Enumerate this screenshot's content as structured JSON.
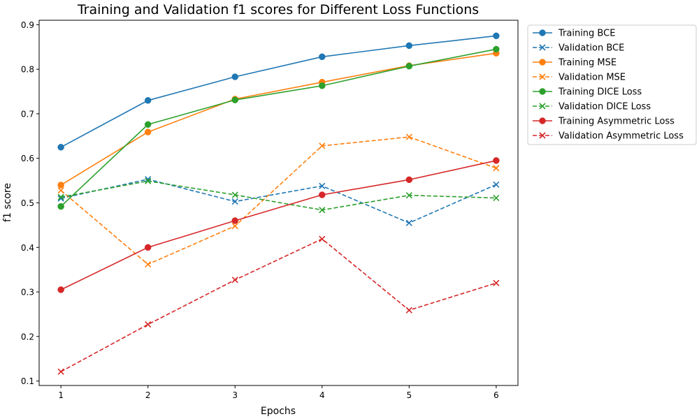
{
  "chart_data": {
    "type": "line",
    "title": "Training and Validation f1 scores for Different Loss Functions",
    "xlabel": "Epochs",
    "ylabel": "f1 score",
    "x": [
      1,
      2,
      3,
      4,
      5,
      6
    ],
    "xlim": [
      0.75,
      6.25
    ],
    "ylim": [
      0.09,
      0.91
    ],
    "xticks": [
      1,
      2,
      3,
      4,
      5,
      6
    ],
    "yticks": [
      0.1,
      0.2,
      0.3,
      0.4,
      0.5,
      0.6,
      0.7,
      0.8,
      0.9
    ],
    "grid": false,
    "legend_position": "outside-right",
    "series": [
      {
        "name": "Training BCE",
        "color": "#1f77b4",
        "style": "solid",
        "marker": "circle",
        "values": [
          0.625,
          0.73,
          0.783,
          0.828,
          0.853,
          0.875
        ]
      },
      {
        "name": "Validation BCE",
        "color": "#1f77b4",
        "style": "dashed",
        "marker": "x",
        "values": [
          0.51,
          0.553,
          0.503,
          0.538,
          0.455,
          0.541
        ]
      },
      {
        "name": "Training MSE",
        "color": "#ff7f0e",
        "style": "solid",
        "marker": "circle",
        "values": [
          0.54,
          0.659,
          0.733,
          0.771,
          0.808,
          0.836
        ]
      },
      {
        "name": "Validation MSE",
        "color": "#ff7f0e",
        "style": "dashed",
        "marker": "x",
        "values": [
          0.528,
          0.362,
          0.448,
          0.628,
          0.648,
          0.578
        ]
      },
      {
        "name": "Training DICE Loss",
        "color": "#2ca02c",
        "style": "solid",
        "marker": "circle",
        "values": [
          0.492,
          0.676,
          0.731,
          0.763,
          0.807,
          0.845
        ]
      },
      {
        "name": "Validation DICE Loss",
        "color": "#2ca02c",
        "style": "dashed",
        "marker": "x",
        "values": [
          0.513,
          0.549,
          0.518,
          0.484,
          0.517,
          0.511
        ]
      },
      {
        "name": "Training Asymmetric Loss",
        "color": "#d62728",
        "style": "solid",
        "marker": "circle",
        "values": [
          0.305,
          0.4,
          0.46,
          0.518,
          0.552,
          0.595
        ]
      },
      {
        "name": "Validation Asymmetric Loss",
        "color": "#d62728",
        "style": "dashed",
        "marker": "x",
        "values": [
          0.121,
          0.227,
          0.327,
          0.419,
          0.259,
          0.32
        ]
      }
    ]
  }
}
